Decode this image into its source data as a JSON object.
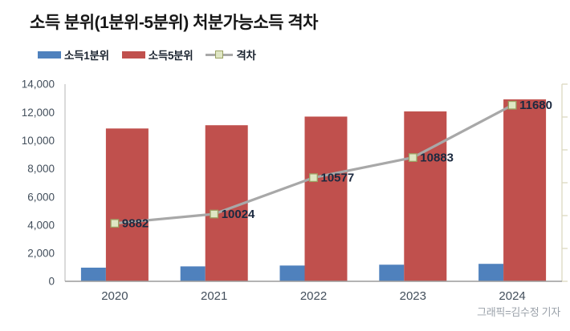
{
  "header": {
    "title": "소득 분위(1분위-5분위) 처분가능소득 격차"
  },
  "legend": {
    "items": [
      {
        "label": "소득1분위",
        "swatch": "bar",
        "color": "#4f81bd"
      },
      {
        "label": "소득5분위",
        "swatch": "bar",
        "color": "#c0504d"
      },
      {
        "label": "격차",
        "swatch": "line-marker",
        "line_color": "#a8a8a8",
        "marker_fill": "#dfe6c4",
        "marker_border": "#9ba264"
      }
    ]
  },
  "footer": {
    "credit": "그래픽=김수정 기자"
  },
  "chart_data": {
    "type": "bar",
    "subtype": "bar-line-combo",
    "title": "소득 분위(1분위-5분위) 처분가능소득 격차",
    "categories": [
      "2020",
      "2021",
      "2022",
      "2023",
      "2024"
    ],
    "series": [
      {
        "name": "소득1분위",
        "kind": "bar",
        "axis": "primary",
        "color": "#4f81bd",
        "values": [
          970,
          1060,
          1120,
          1180,
          1240
        ]
      },
      {
        "name": "소득5분위",
        "kind": "bar",
        "axis": "primary",
        "color": "#c0504d",
        "values": [
          10852,
          11084,
          11697,
          12063,
          12920
        ]
      },
      {
        "name": "격차",
        "kind": "line",
        "axis": "secondary",
        "line_color": "#a8a8a8",
        "marker_fill": "#dfe6c4",
        "marker_border": "#9ba264",
        "values": [
          9882,
          10024,
          10577,
          10883,
          11680
        ],
        "point_labels": [
          "9882",
          "10024",
          "10577",
          "10883",
          "11680"
        ]
      }
    ],
    "primary_axis": {
      "min": 0,
      "max": 14000,
      "tick_step": 2000,
      "tick_labels": [
        "0",
        "2,000",
        "4,000",
        "6,000",
        "8,000",
        "10,000",
        "12,000",
        "14,000"
      ],
      "labels_visible": true,
      "label_color": "#434f5c"
    },
    "secondary_axis": {
      "min": 9000,
      "max": 12000,
      "tick_step": 500,
      "labels_visible": false,
      "tick_color": "#dcd9c0"
    },
    "point_label_color": "#1c2a40",
    "legend_position": "top-left",
    "grid": false
  }
}
